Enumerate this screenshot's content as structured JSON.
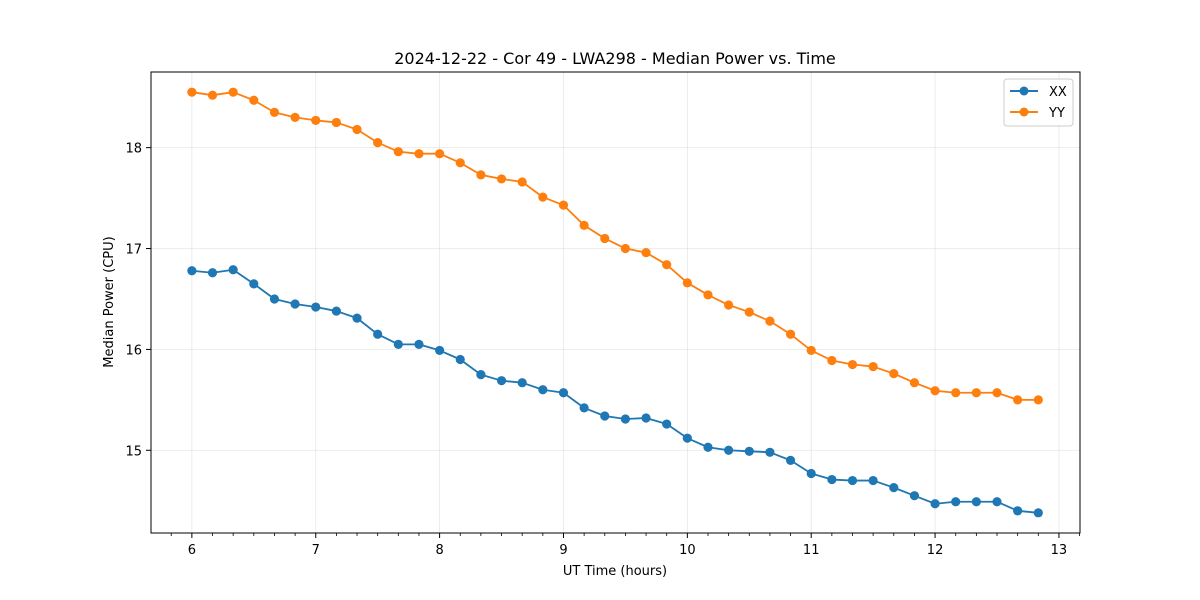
{
  "chart_data": {
    "type": "line",
    "title": "2024-12-22 - Cor 49 - LWA298 - Median Power vs. Time",
    "xlabel": "UT Time (hours)",
    "ylabel": "Median Power (CPU)",
    "xlim": [
      5.67,
      13.17
    ],
    "ylim": [
      14.18,
      18.75
    ],
    "xticks": [
      6,
      7,
      8,
      9,
      10,
      11,
      12,
      13
    ],
    "yticks": [
      15,
      16,
      17,
      18
    ],
    "grid": true,
    "legend_position": "top-right",
    "x": [
      6.0,
      6.1667,
      6.3333,
      6.5,
      6.6667,
      6.8333,
      7.0,
      7.1667,
      7.3333,
      7.5,
      7.6667,
      7.8333,
      8.0,
      8.1667,
      8.3333,
      8.5,
      8.6667,
      8.8333,
      9.0,
      9.1667,
      9.3333,
      9.5,
      9.6667,
      9.8333,
      10.0,
      10.1667,
      10.3333,
      10.5,
      10.6667,
      10.8333,
      11.0,
      11.1667,
      11.3333,
      11.5,
      11.6667,
      11.8333,
      12.0,
      12.1667,
      12.3333,
      12.5,
      12.6667,
      12.8333
    ],
    "series": [
      {
        "name": "XX",
        "color": "#1f77b4",
        "values": [
          16.78,
          16.76,
          16.79,
          16.65,
          16.5,
          16.45,
          16.42,
          16.38,
          16.31,
          16.15,
          16.05,
          16.05,
          15.99,
          15.9,
          15.75,
          15.69,
          15.67,
          15.6,
          15.57,
          15.42,
          15.34,
          15.31,
          15.32,
          15.26,
          15.12,
          15.03,
          15.0,
          14.99,
          14.98,
          14.9,
          14.77,
          14.71,
          14.7,
          14.7,
          14.63,
          14.55,
          14.47,
          14.49,
          14.49,
          14.49,
          14.4,
          14.38
        ]
      },
      {
        "name": "YY",
        "color": "#ff7f0e",
        "values": [
          18.55,
          18.52,
          18.55,
          18.47,
          18.35,
          18.3,
          18.27,
          18.25,
          18.18,
          18.05,
          17.96,
          17.94,
          17.94,
          17.85,
          17.73,
          17.69,
          17.66,
          17.51,
          17.43,
          17.23,
          17.1,
          17.0,
          16.96,
          16.84,
          16.66,
          16.54,
          16.44,
          16.37,
          16.28,
          16.15,
          15.99,
          15.89,
          15.85,
          15.83,
          15.76,
          15.67,
          15.59,
          15.57,
          15.57,
          15.57,
          15.5,
          15.5
        ]
      }
    ]
  }
}
